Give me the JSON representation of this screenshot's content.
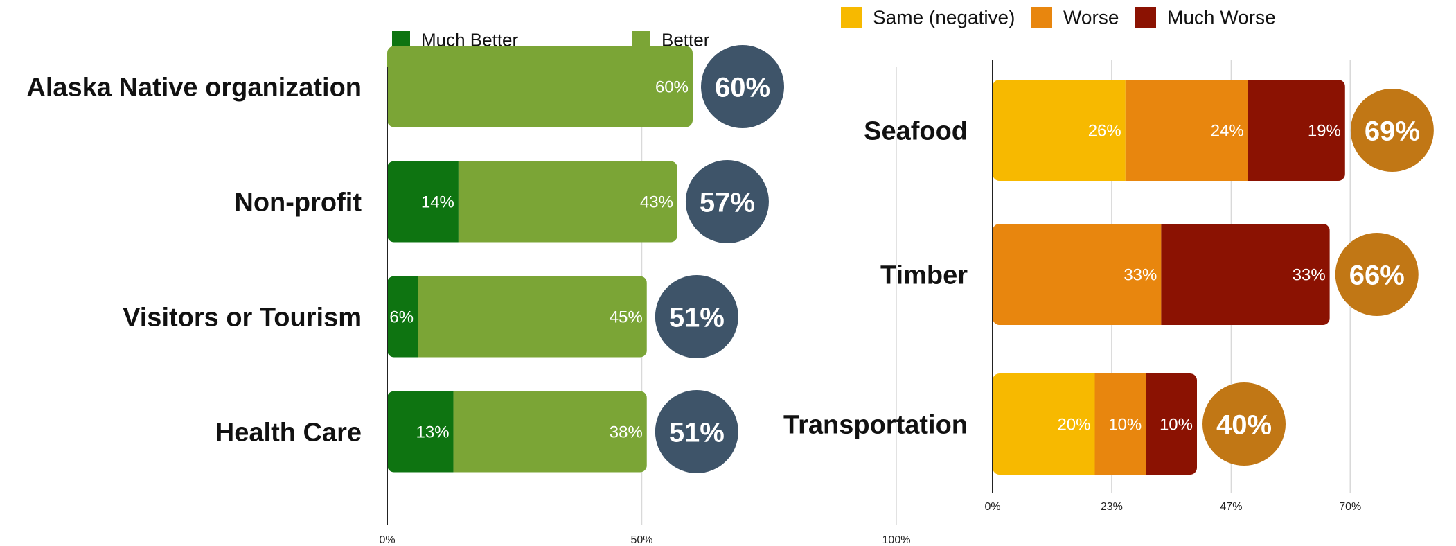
{
  "chart_data": [
    {
      "type": "bar",
      "stacked": true,
      "orientation": "horizontal",
      "categories": [
        "Alaska Native organization",
        "Non-profit",
        "Visitors or Tourism",
        "Health Care"
      ],
      "series": [
        {
          "name": "Much Better",
          "color": "#0e7411",
          "values": [
            0,
            14,
            6,
            13
          ]
        },
        {
          "name": "Better",
          "color": "#7ba536",
          "values": [
            60,
            43,
            45,
            38
          ]
        }
      ],
      "totals": [
        60,
        57,
        51,
        51
      ],
      "total_labels": [
        "60%",
        "57%",
        "51%",
        "51%"
      ],
      "total_badge_color": "#3e5469",
      "xlim": [
        0,
        100
      ],
      "x_ticks": [
        0,
        50,
        100
      ],
      "x_tick_labels": [
        "0%",
        "50%",
        "100%"
      ],
      "grid": true,
      "legend_position": "top"
    },
    {
      "type": "bar",
      "stacked": true,
      "orientation": "horizontal",
      "categories": [
        "Seafood",
        "Timber",
        "Transportation"
      ],
      "series": [
        {
          "name": "Same (negative)",
          "color": "#f7b900",
          "values": [
            26,
            0,
            20
          ]
        },
        {
          "name": "Worse",
          "color": "#e8860e",
          "values": [
            24,
            33,
            10
          ]
        },
        {
          "name": "Much Worse",
          "color": "#8b1202",
          "values": [
            19,
            33,
            10
          ]
        }
      ],
      "totals": [
        69,
        66,
        40
      ],
      "total_labels": [
        "69%",
        "66%",
        "40%"
      ],
      "total_badge_color": "#c17715",
      "xlim": [
        0,
        93.3
      ],
      "x_ticks": [
        0,
        23.3,
        46.7,
        70
      ],
      "x_tick_labels": [
        "0%",
        "23%",
        "47%",
        "70%"
      ],
      "grid": true,
      "legend_position": "top"
    }
  ]
}
